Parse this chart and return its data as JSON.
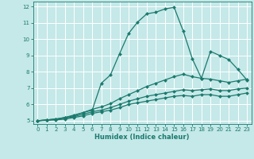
{
  "xlabel": "Humidex (Indice chaleur)",
  "xlim": [
    -0.5,
    23.5
  ],
  "ylim": [
    4.8,
    12.3
  ],
  "xticks": [
    0,
    1,
    2,
    3,
    4,
    5,
    6,
    7,
    8,
    9,
    10,
    11,
    12,
    13,
    14,
    15,
    16,
    17,
    18,
    19,
    20,
    21,
    22,
    23
  ],
  "yticks": [
    5,
    6,
    7,
    8,
    9,
    10,
    11,
    12
  ],
  "bg_color": "#c5e8e8",
  "grid_color": "#ffffff",
  "line_color": "#1a7a6e",
  "lines": [
    {
      "x": [
        0,
        1,
        2,
        3,
        4,
        5,
        6,
        7,
        8,
        9,
        10,
        11,
        12,
        13,
        14,
        15,
        16,
        17,
        18,
        19,
        20,
        21,
        22,
        23
      ],
      "y": [
        5,
        5.05,
        5.1,
        5.2,
        5.35,
        5.5,
        5.65,
        7.3,
        7.8,
        9.1,
        10.35,
        11.05,
        11.55,
        11.65,
        11.85,
        11.95,
        10.5,
        8.8,
        7.6,
        9.25,
        9.0,
        8.75,
        8.15,
        7.5
      ]
    },
    {
      "x": [
        0,
        1,
        2,
        3,
        4,
        5,
        6,
        7,
        8,
        9,
        10,
        11,
        12,
        13,
        14,
        15,
        16,
        17,
        18,
        19,
        20,
        21,
        22,
        23
      ],
      "y": [
        5,
        5.05,
        5.1,
        5.2,
        5.3,
        5.5,
        5.7,
        5.85,
        6.05,
        6.35,
        6.6,
        6.85,
        7.1,
        7.3,
        7.5,
        7.7,
        7.85,
        7.7,
        7.6,
        7.55,
        7.45,
        7.35,
        7.45,
        7.55
      ]
    },
    {
      "x": [
        0,
        1,
        2,
        3,
        4,
        5,
        6,
        7,
        8,
        9,
        10,
        11,
        12,
        13,
        14,
        15,
        16,
        17,
        18,
        19,
        20,
        21,
        22,
        23
      ],
      "y": [
        5,
        5.05,
        5.1,
        5.15,
        5.25,
        5.4,
        5.55,
        5.65,
        5.8,
        6.0,
        6.2,
        6.35,
        6.5,
        6.6,
        6.7,
        6.8,
        6.9,
        6.85,
        6.9,
        6.95,
        6.85,
        6.85,
        6.95,
        7.0
      ]
    },
    {
      "x": [
        0,
        1,
        2,
        3,
        4,
        5,
        6,
        7,
        8,
        9,
        10,
        11,
        12,
        13,
        14,
        15,
        16,
        17,
        18,
        19,
        20,
        21,
        22,
        23
      ],
      "y": [
        5,
        5.02,
        5.05,
        5.1,
        5.2,
        5.3,
        5.45,
        5.55,
        5.65,
        5.8,
        6.0,
        6.1,
        6.2,
        6.3,
        6.4,
        6.5,
        6.55,
        6.5,
        6.6,
        6.6,
        6.5,
        6.5,
        6.6,
        6.7
      ]
    }
  ],
  "marker": "D",
  "markersize": 2.0,
  "linewidth": 0.9,
  "tick_fontsize": 5.0,
  "xlabel_fontsize": 6.0
}
